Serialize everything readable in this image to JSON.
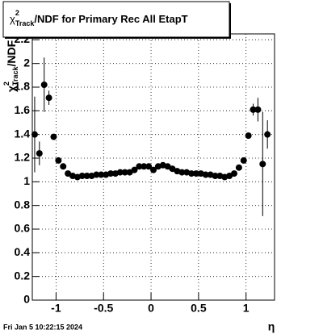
{
  "chart_data": {
    "type": "scatter",
    "title": {
      "symbol": "χ",
      "sup": "2",
      "sub": "Track",
      "text": "/NDF for Primary Rec All EtapT"
    },
    "y_label": {
      "symbol": "χ",
      "sup": "2",
      "sub": "Track",
      "text": "/NDF"
    },
    "x_label": "η",
    "footer": "Fri Jan  5 10:22:15 2024",
    "xlim": [
      -1.25,
      1.3
    ],
    "ylim": [
      0,
      2.25
    ],
    "xticks": [
      -1,
      -0.5,
      0,
      0.5,
      1
    ],
    "yticks": [
      0,
      0.2,
      0.4,
      0.6,
      0.8,
      1,
      1.2,
      1.4,
      1.6,
      1.8,
      2,
      2.2
    ],
    "grid": true,
    "series": [
      {
        "color": "#000000",
        "x": [
          -1.225,
          -1.175,
          -1.125,
          -1.075,
          -1.025,
          -0.975,
          -0.925,
          -0.875,
          -0.825,
          -0.775,
          -0.725,
          -0.675,
          -0.625,
          -0.575,
          -0.525,
          -0.475,
          -0.425,
          -0.375,
          -0.325,
          -0.275,
          -0.225,
          -0.175,
          -0.125,
          -0.075,
          -0.025,
          0.025,
          0.075,
          0.125,
          0.175,
          0.225,
          0.275,
          0.325,
          0.375,
          0.425,
          0.475,
          0.525,
          0.575,
          0.625,
          0.675,
          0.725,
          0.775,
          0.825,
          0.875,
          0.925,
          0.975,
          1.025,
          1.075,
          1.125,
          1.175,
          1.225
        ],
        "values": [
          1.4,
          1.24,
          1.82,
          1.71,
          1.38,
          1.18,
          1.13,
          1.07,
          1.05,
          1.04,
          1.05,
          1.05,
          1.05,
          1.06,
          1.06,
          1.06,
          1.07,
          1.07,
          1.08,
          1.08,
          1.08,
          1.1,
          1.13,
          1.13,
          1.13,
          1.1,
          1.13,
          1.14,
          1.13,
          1.11,
          1.09,
          1.08,
          1.08,
          1.07,
          1.07,
          1.07,
          1.06,
          1.06,
          1.05,
          1.05,
          1.04,
          1.05,
          1.07,
          1.12,
          1.18,
          1.39,
          1.61,
          1.61,
          1.15,
          1.4
        ],
        "errors": [
          0.32,
          0.1,
          0.23,
          0.06,
          0.02,
          0.01,
          0.01,
          0.01,
          0.01,
          0.01,
          0.01,
          0.01,
          0.01,
          0.01,
          0.01,
          0.01,
          0.01,
          0.01,
          0.01,
          0.01,
          0.01,
          0.01,
          0.01,
          0.01,
          0.01,
          0.01,
          0.01,
          0.01,
          0.01,
          0.01,
          0.01,
          0.01,
          0.01,
          0.01,
          0.01,
          0.01,
          0.01,
          0.01,
          0.01,
          0.01,
          0.01,
          0.01,
          0.01,
          0.01,
          0.02,
          0.02,
          0.05,
          0.1,
          0.44,
          0.12
        ]
      }
    ]
  }
}
